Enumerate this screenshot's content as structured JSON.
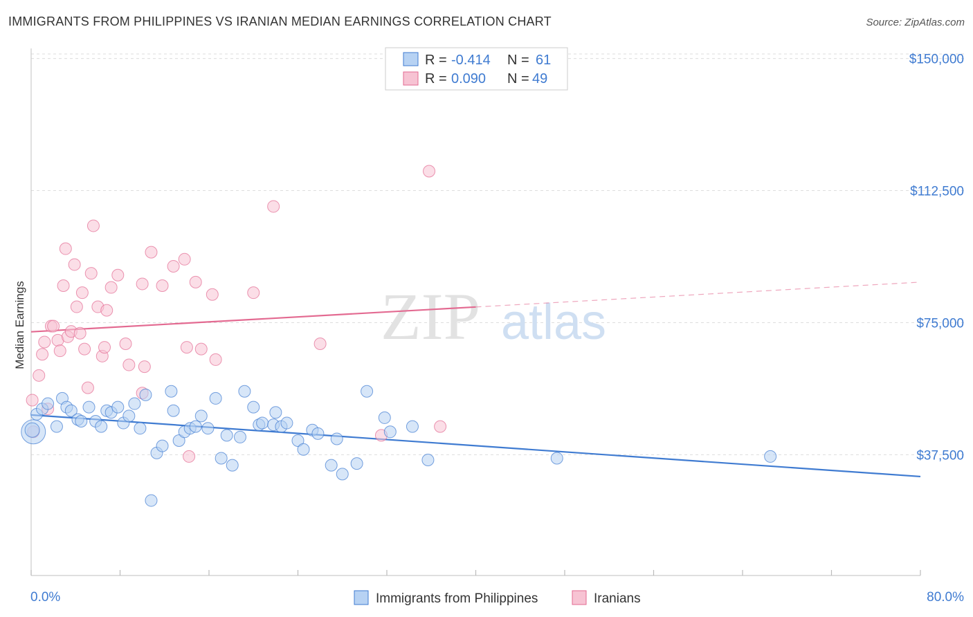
{
  "title": "IMMIGRANTS FROM PHILIPPINES VS IRANIAN MEDIAN EARNINGS CORRELATION CHART",
  "source": "Source: ZipAtlas.com",
  "watermark": {
    "zip": "ZIP",
    "atlas": "atlas"
  },
  "colors": {
    "blue": "#3f7bd1",
    "blue_fill": "#b7d2f3",
    "pink": "#e36a91",
    "pink_fill": "#f7c3d3",
    "grid": "#dddddd"
  },
  "legend_box": {
    "rows": [
      {
        "r_label": "R =",
        "r_value": "-0.414",
        "n_label": "N =",
        "n_value": "61"
      },
      {
        "r_label": "R =",
        "r_value": "0.090",
        "n_label": "N =",
        "n_value": "49"
      }
    ]
  },
  "chart_data": {
    "type": "scatter",
    "ylabel": "Median Earnings",
    "xlim": [
      0,
      80
    ],
    "ylim": [
      0,
      157000
    ],
    "x_tick_labels": [
      "0.0%",
      "80.0%"
    ],
    "y_ticks": [
      37500,
      75000,
      112500,
      150000
    ],
    "y_tick_labels": [
      "$37,500",
      "$75,000",
      "$112,500",
      "$150,000"
    ],
    "grid": true,
    "legend_placement": "bottom",
    "series": [
      {
        "name": "Immigrants from Philippines",
        "color": "blue",
        "trend": {
          "x": [
            0,
            80
          ],
          "y": [
            48800,
            31300
          ],
          "dashed_from": null
        },
        "points": [
          [
            0.2,
            44000
          ],
          [
            0.5,
            49000
          ],
          [
            1.0,
            50500
          ],
          [
            1.5,
            52000
          ],
          [
            2.3,
            45500
          ],
          [
            2.8,
            53500
          ],
          [
            3.2,
            51000
          ],
          [
            3.6,
            50000
          ],
          [
            4.2,
            47500
          ],
          [
            4.5,
            47000
          ],
          [
            5.2,
            51000
          ],
          [
            5.8,
            47000
          ],
          [
            6.3,
            45500
          ],
          [
            6.8,
            50000
          ],
          [
            7.2,
            49500
          ],
          [
            7.8,
            51000
          ],
          [
            8.3,
            46500
          ],
          [
            8.8,
            48500
          ],
          [
            9.3,
            52000
          ],
          [
            9.8,
            45000
          ],
          [
            10.3,
            54500
          ],
          [
            10.8,
            24500
          ],
          [
            11.3,
            38000
          ],
          [
            11.8,
            40000
          ],
          [
            12.6,
            55500
          ],
          [
            12.8,
            50000
          ],
          [
            13.3,
            41500
          ],
          [
            13.8,
            44000
          ],
          [
            14.3,
            45000
          ],
          [
            14.8,
            45500
          ],
          [
            15.3,
            48500
          ],
          [
            15.9,
            45000
          ],
          [
            16.6,
            53500
          ],
          [
            17.1,
            36500
          ],
          [
            17.6,
            43000
          ],
          [
            18.1,
            34500
          ],
          [
            18.8,
            42500
          ],
          [
            19.2,
            55500
          ],
          [
            20.0,
            51000
          ],
          [
            20.5,
            46000
          ],
          [
            20.8,
            46500
          ],
          [
            22.0,
            49500
          ],
          [
            21.8,
            46000
          ],
          [
            22.5,
            45500
          ],
          [
            23.0,
            46500
          ],
          [
            24.0,
            41500
          ],
          [
            24.5,
            39000
          ],
          [
            25.3,
            44500
          ],
          [
            25.8,
            43500
          ],
          [
            27.0,
            34500
          ],
          [
            27.5,
            42000
          ],
          [
            28.0,
            32000
          ],
          [
            29.3,
            35000
          ],
          [
            30.2,
            55500
          ],
          [
            31.8,
            48000
          ],
          [
            32.3,
            44000
          ],
          [
            34.3,
            45500
          ],
          [
            35.7,
            36000
          ],
          [
            47.3,
            36500
          ],
          [
            66.5,
            37000
          ],
          [
            0.1,
            44500
          ]
        ],
        "sizes": [
          34,
          16,
          16,
          16,
          16,
          16,
          16,
          16,
          16,
          16,
          16,
          16,
          16,
          16,
          16,
          16,
          16,
          16,
          16,
          16,
          16,
          16,
          16,
          16,
          16,
          16,
          16,
          16,
          16,
          16,
          16,
          16,
          16,
          16,
          16,
          16,
          16,
          16,
          16,
          16,
          16,
          16,
          16,
          16,
          16,
          16,
          16,
          16,
          16,
          16,
          16,
          16,
          16,
          16,
          16,
          16,
          16,
          16,
          16,
          16,
          20
        ]
      },
      {
        "name": "Iranians",
        "color": "pink",
        "trend": {
          "x": [
            0,
            80
          ],
          "y": [
            72400,
            86500
          ],
          "dashed_from": 40
        },
        "points": [
          [
            0.1,
            53000
          ],
          [
            0.2,
            44000
          ],
          [
            0.7,
            60000
          ],
          [
            1.0,
            66000
          ],
          [
            1.2,
            69500
          ],
          [
            1.5,
            50500
          ],
          [
            1.8,
            74000
          ],
          [
            2.0,
            74000
          ],
          [
            2.4,
            70000
          ],
          [
            2.6,
            67000
          ],
          [
            2.9,
            85500
          ],
          [
            3.1,
            96000
          ],
          [
            3.3,
            71000
          ],
          [
            3.6,
            72500
          ],
          [
            3.9,
            91500
          ],
          [
            4.1,
            79500
          ],
          [
            4.4,
            72000
          ],
          [
            4.6,
            83500
          ],
          [
            4.8,
            67500
          ],
          [
            5.1,
            56500
          ],
          [
            5.4,
            89000
          ],
          [
            5.6,
            102500
          ],
          [
            6.0,
            79500
          ],
          [
            6.4,
            65500
          ],
          [
            6.6,
            68000
          ],
          [
            6.8,
            78500
          ],
          [
            7.2,
            85000
          ],
          [
            7.8,
            88500
          ],
          [
            8.5,
            69000
          ],
          [
            8.8,
            63000
          ],
          [
            10.0,
            86000
          ],
          [
            10.2,
            62500
          ],
          [
            10.8,
            95000
          ],
          [
            11.8,
            85500
          ],
          [
            12.8,
            91000
          ],
          [
            13.8,
            93000
          ],
          [
            14.0,
            68000
          ],
          [
            14.2,
            37000
          ],
          [
            14.8,
            86500
          ],
          [
            15.3,
            67500
          ],
          [
            16.3,
            83000
          ],
          [
            16.6,
            64500
          ],
          [
            20.0,
            83500
          ],
          [
            21.8,
            108000
          ],
          [
            10.0,
            55000
          ],
          [
            26.0,
            69000
          ],
          [
            31.5,
            43000
          ],
          [
            35.8,
            118000
          ],
          [
            36.8,
            45500
          ]
        ],
        "sizes": [
          16,
          16,
          16,
          16,
          16,
          16,
          16,
          16,
          16,
          16,
          16,
          16,
          16,
          16,
          16,
          16,
          16,
          16,
          16,
          16,
          16,
          16,
          16,
          16,
          16,
          16,
          16,
          16,
          16,
          16,
          16,
          16,
          16,
          16,
          16,
          16,
          16,
          16,
          16,
          16,
          16,
          16,
          16,
          16,
          16,
          16,
          16,
          16,
          16
        ]
      }
    ]
  }
}
